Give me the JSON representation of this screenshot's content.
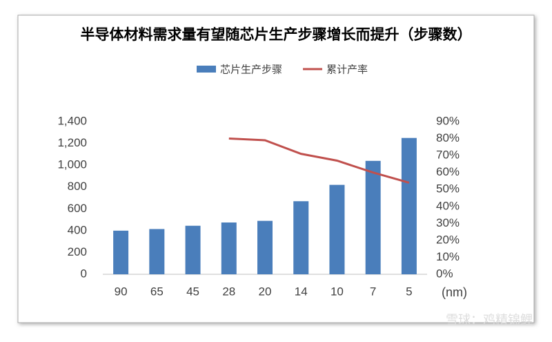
{
  "chart_data": {
    "type": "bar",
    "title": "半导体材料需求量有望随芯片生产步骤增长而提升（步骤数）",
    "x_label": "(nm)",
    "categories": [
      "90",
      "65",
      "45",
      "28",
      "20",
      "14",
      "10",
      "7",
      "5"
    ],
    "series": [
      {
        "name": "芯片生产步骤",
        "color": "#4a7ebb",
        "type": "bar",
        "values": [
          400,
          415,
          445,
          475,
          490,
          670,
          820,
          1040,
          1250
        ]
      },
      {
        "name": "累计产率",
        "color": "#c0504d",
        "type": "line",
        "axis": "y2",
        "values": [
          null,
          null,
          null,
          80,
          79,
          71,
          67,
          60,
          54
        ]
      }
    ],
    "ylim": [
      0,
      1400
    ],
    "yticks": [
      0,
      200,
      400,
      600,
      800,
      {
        "value": 1000,
        "label": "1,000"
      },
      {
        "value": 1200,
        "label": "1,200"
      },
      {
        "value": 1400,
        "label": "1,400"
      }
    ],
    "y2lim": [
      0,
      90
    ],
    "y2ticks": [
      {
        "value": 0,
        "label": "0%"
      },
      {
        "value": 10,
        "label": "10%"
      },
      {
        "value": 20,
        "label": "20%"
      },
      {
        "value": 30,
        "label": "30%"
      },
      {
        "value": 40,
        "label": "40%"
      },
      {
        "value": 50,
        "label": "50%"
      },
      {
        "value": 60,
        "label": "60%"
      },
      {
        "value": 70,
        "label": "70%"
      },
      {
        "value": 80,
        "label": "80%"
      },
      {
        "value": 90,
        "label": "90%"
      }
    ],
    "legend": "top",
    "grid": false,
    "watermark": "雪球：鸡精锦鲤"
  }
}
